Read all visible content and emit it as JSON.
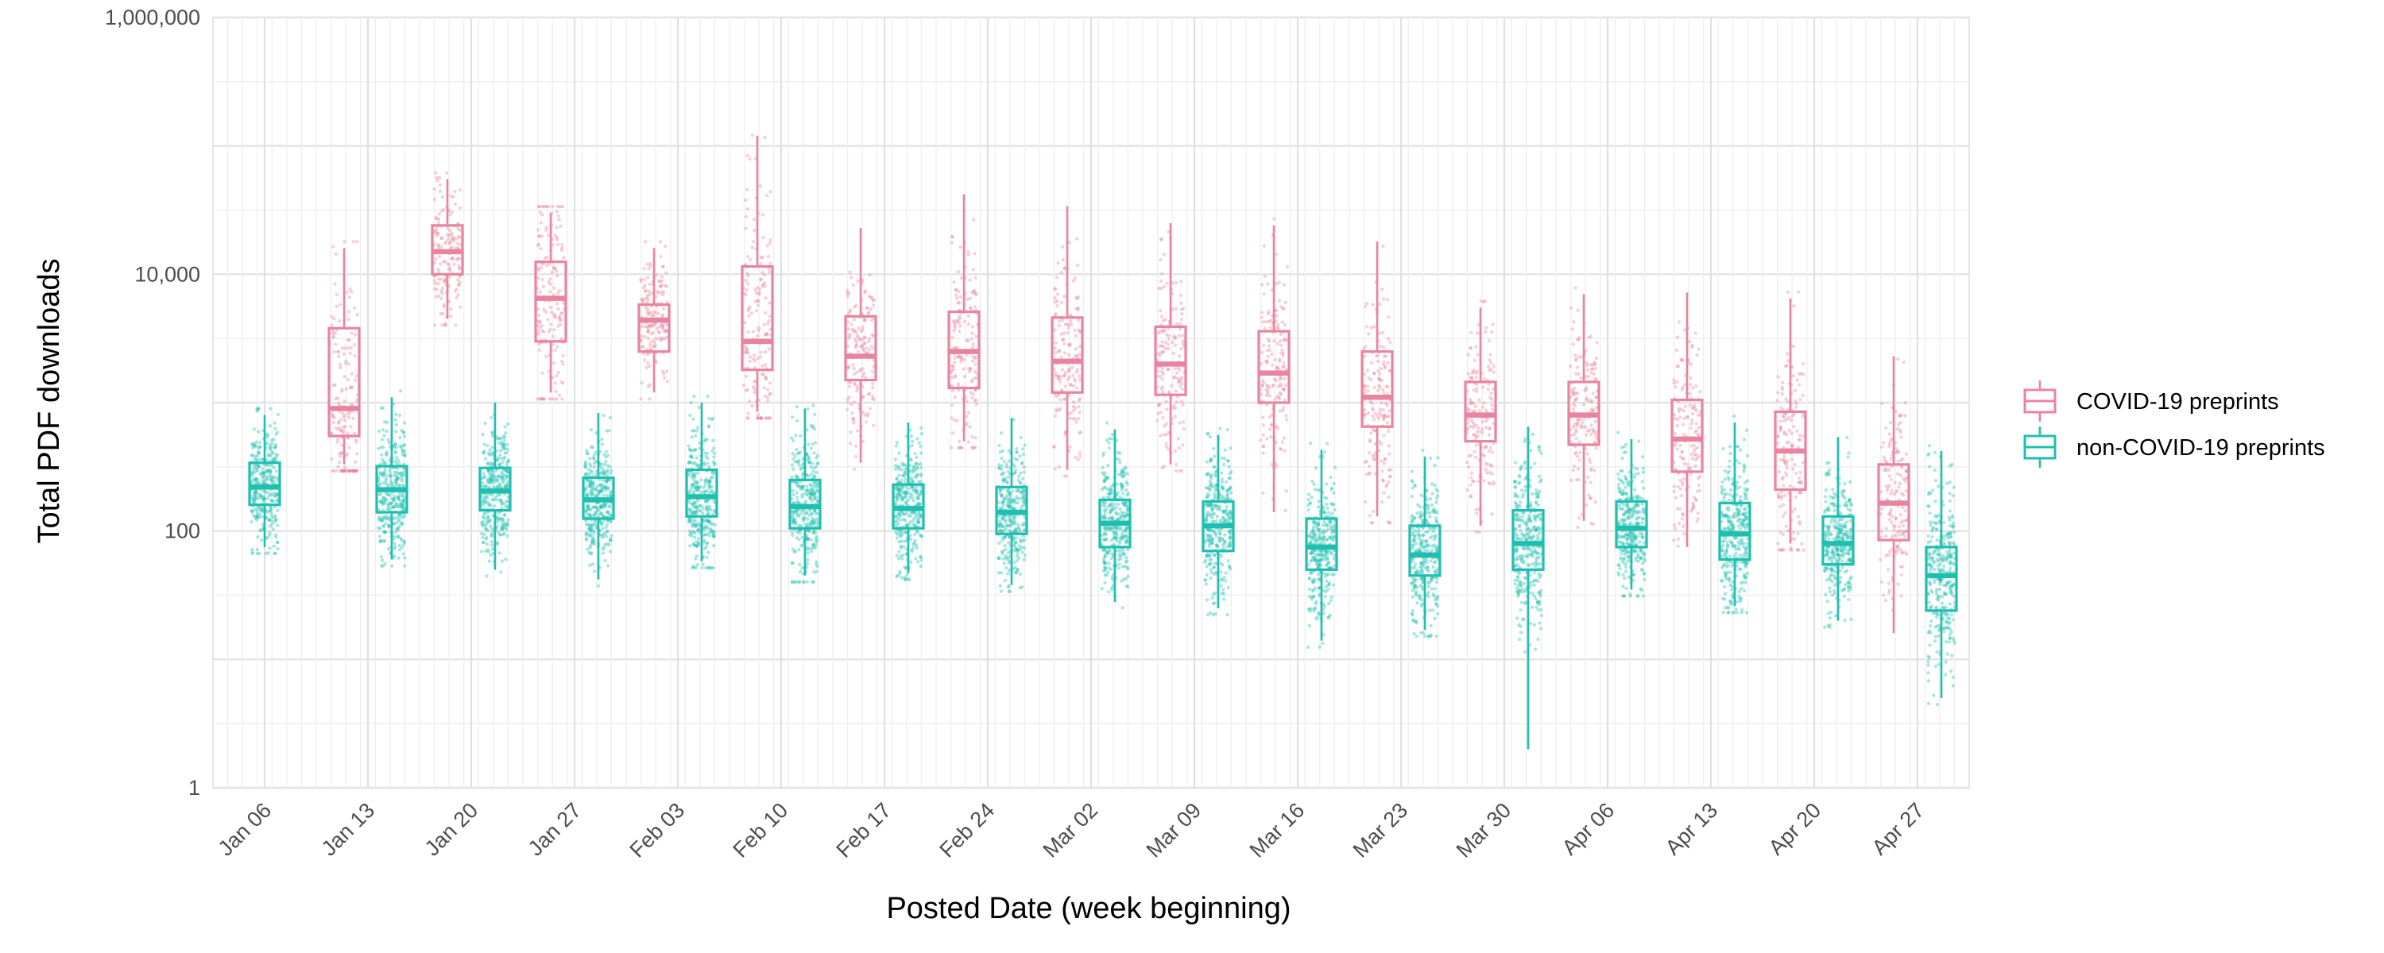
{
  "chart_data": {
    "type": "box",
    "xlabel": "Posted Date (week beginning)",
    "ylabel": "Total PDF downloads",
    "y_scale": "log10",
    "ylim": [
      1,
      1000000
    ],
    "y_ticks": [
      {
        "value": 1,
        "label": "1"
      },
      {
        "value": 100,
        "label": "100"
      },
      {
        "value": 10000,
        "label": "10,000"
      },
      {
        "value": 1000000,
        "label": "1,000,000"
      }
    ],
    "categories": [
      "Jan 06",
      "Jan 13",
      "Jan 20",
      "Jan 27",
      "Feb 03",
      "Feb 10",
      "Feb 17",
      "Feb 24",
      "Mar 02",
      "Mar 09",
      "Mar 16",
      "Mar 23",
      "Mar 30",
      "Apr 06",
      "Apr 13",
      "Apr 20",
      "Apr 27"
    ],
    "grid": true,
    "legend_position": "right",
    "series": [
      {
        "name": "COVID-19 preprints",
        "color": "#E8849F",
        "boxes": [
          null,
          {
            "whisker_low": 330,
            "q1": 550,
            "median": 900,
            "q3": 3800,
            "whisker_high": 16000
          },
          {
            "whisker_low": 4500,
            "q1": 10000,
            "median": 15000,
            "q3": 24000,
            "whisker_high": 55000
          },
          {
            "whisker_low": 1200,
            "q1": 3000,
            "median": 6500,
            "q3": 12500,
            "whisker_high": 30000
          },
          {
            "whisker_low": 1200,
            "q1": 2500,
            "median": 4400,
            "q3": 5800,
            "whisker_high": 16000
          },
          {
            "whisker_low": 850,
            "q1": 1800,
            "median": 3000,
            "q3": 11500,
            "whisker_high": 120000
          },
          {
            "whisker_low": 340,
            "q1": 1500,
            "median": 2300,
            "q3": 4700,
            "whisker_high": 23000
          },
          {
            "whisker_low": 500,
            "q1": 1300,
            "median": 2500,
            "q3": 5100,
            "whisker_high": 42000
          },
          {
            "whisker_low": 300,
            "q1": 1200,
            "median": 2100,
            "q3": 4600,
            "whisker_high": 34000
          },
          {
            "whisker_low": 330,
            "q1": 1150,
            "median": 2000,
            "q3": 3900,
            "whisker_high": 25000
          },
          {
            "whisker_low": 140,
            "q1": 1000,
            "median": 1700,
            "q3": 3600,
            "whisker_high": 24000
          },
          {
            "whisker_low": 130,
            "q1": 650,
            "median": 1100,
            "q3": 2500,
            "whisker_high": 18000
          },
          {
            "whisker_low": 110,
            "q1": 500,
            "median": 800,
            "q3": 1450,
            "whisker_high": 5500
          },
          {
            "whisker_low": 120,
            "q1": 470,
            "median": 800,
            "q3": 1450,
            "whisker_high": 7000
          },
          {
            "whisker_low": 75,
            "q1": 290,
            "median": 520,
            "q3": 1050,
            "whisker_high": 7200
          },
          {
            "whisker_low": 80,
            "q1": 210,
            "median": 420,
            "q3": 850,
            "whisker_high": 6500
          },
          {
            "whisker_low": 16,
            "q1": 85,
            "median": 165,
            "q3": 330,
            "whisker_high": 2300
          }
        ]
      },
      {
        "name": "non-COVID-19 preprints",
        "color": "#1FBFB0",
        "boxes": [
          {
            "whisker_low": 75,
            "q1": 160,
            "median": 220,
            "q3": 340,
            "whisker_high": 800
          },
          {
            "whisker_low": 60,
            "q1": 140,
            "median": 210,
            "q3": 320,
            "whisker_high": 1100
          },
          {
            "whisker_low": 50,
            "q1": 145,
            "median": 205,
            "q3": 310,
            "whisker_high": 1000
          },
          {
            "whisker_low": 42,
            "q1": 125,
            "median": 175,
            "q3": 260,
            "whisker_high": 830
          },
          {
            "whisker_low": 58,
            "q1": 130,
            "median": 185,
            "q3": 300,
            "whisker_high": 1000
          },
          {
            "whisker_low": 45,
            "q1": 105,
            "median": 155,
            "q3": 250,
            "whisker_high": 900
          },
          {
            "whisker_low": 47,
            "q1": 105,
            "median": 150,
            "q3": 230,
            "whisker_high": 700
          },
          {
            "whisker_low": 38,
            "q1": 95,
            "median": 140,
            "q3": 220,
            "whisker_high": 760
          },
          {
            "whisker_low": 28,
            "q1": 75,
            "median": 115,
            "q3": 175,
            "whisker_high": 620
          },
          {
            "whisker_low": 25,
            "q1": 70,
            "median": 110,
            "q3": 170,
            "whisker_high": 560
          },
          {
            "whisker_low": 14,
            "q1": 50,
            "median": 75,
            "q3": 125,
            "whisker_high": 430
          },
          {
            "whisker_low": 17,
            "q1": 45,
            "median": 65,
            "q3": 110,
            "whisker_high": 380
          },
          {
            "whisker_low": 2,
            "q1": 50,
            "median": 80,
            "q3": 145,
            "whisker_high": 650
          },
          {
            "whisker_low": 35,
            "q1": 75,
            "median": 105,
            "q3": 170,
            "whisker_high": 520
          },
          {
            "whisker_low": 26,
            "q1": 60,
            "median": 95,
            "q3": 165,
            "whisker_high": 700
          },
          {
            "whisker_low": 20,
            "q1": 55,
            "median": 80,
            "q3": 130,
            "whisker_high": 540
          },
          {
            "whisker_low": 5,
            "q1": 24,
            "median": 45,
            "q3": 75,
            "whisker_high": 420
          }
        ]
      }
    ]
  }
}
